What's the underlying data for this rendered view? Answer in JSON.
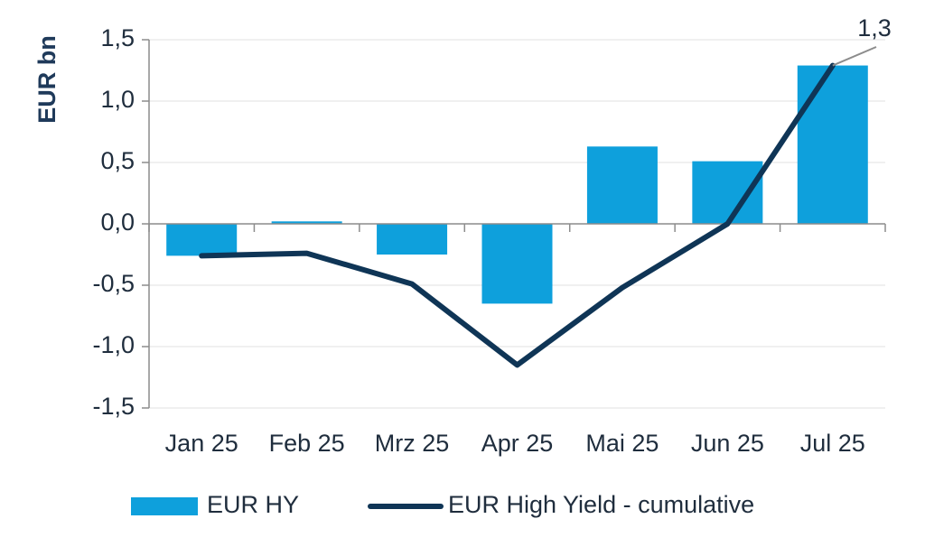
{
  "chart_data": {
    "type": "bar",
    "categories": [
      "Jan 25",
      "Feb 25",
      "Mrz 25",
      "Apr 25",
      "Mai 25",
      "Jun 25",
      "Jul 25"
    ],
    "series": [
      {
        "name": "EUR HY",
        "type": "bar",
        "color": "#0ea0dc",
        "values": [
          -0.26,
          0.02,
          -0.25,
          -0.65,
          0.63,
          0.51,
          1.29
        ]
      },
      {
        "name": "EUR High Yield - cumulative",
        "type": "line",
        "color": "#0f3556",
        "values": [
          -0.26,
          -0.24,
          -0.49,
          -1.15,
          -0.52,
          0.0,
          1.29
        ]
      }
    ],
    "ylabel": "EUR bn",
    "ylim": [
      -1.5,
      1.5
    ],
    "yticks": [
      1.5,
      1.0,
      0.5,
      0.0,
      -0.5,
      -1.0,
      -1.5
    ],
    "ytick_labels": [
      "1,5",
      "1,0",
      "0,5",
      "0,0",
      "-0,5",
      "-1,0",
      "-1,5"
    ],
    "grid": true,
    "legend_position": "bottom",
    "annotation": {
      "text": "1,3",
      "category": "Jul 25",
      "value": 1.29
    }
  }
}
